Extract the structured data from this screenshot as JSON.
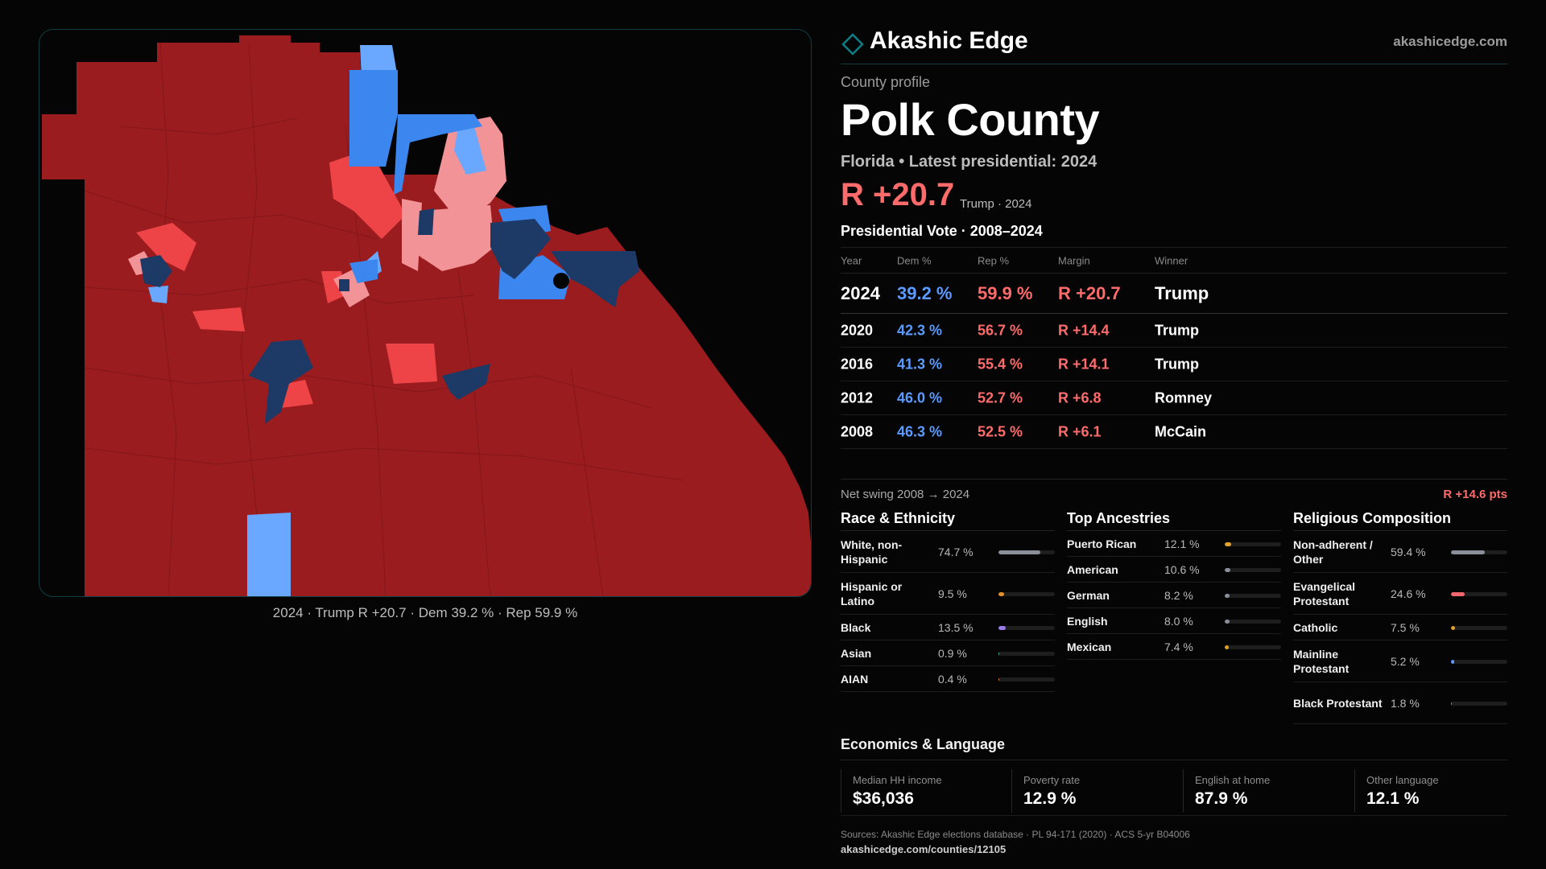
{
  "brand": {
    "name": "Akashic Edge",
    "url": "akashicedge.com",
    "accent": "#0d7d86"
  },
  "map": {
    "caption": "2024 · Trump R +20.7 · Dem 39.2 % · Rep 59.9 %",
    "colors": {
      "strong_rep": "#9b1c1f",
      "mid_rep": "#ef4447",
      "light_rep": "#f19397",
      "light_dem": "#6aa8ff",
      "mid_dem": "#3c87ef",
      "strong_dem": "#1d3a66"
    }
  },
  "profile": {
    "kicker": "County profile",
    "title": "Polk County",
    "subtitle": "Florida • Latest presidential: 2024",
    "headline_margin": "R +20.7",
    "headline_sub": "Trump · 2024"
  },
  "vote": {
    "title": "Presidential Vote · 2008–2024",
    "headers": {
      "year": "Year",
      "dem": "Dem %",
      "rep": "Rep %",
      "margin": "Margin",
      "winner": "Winner"
    },
    "rows": [
      {
        "year": "2024",
        "dem": "39.2 %",
        "rep": "59.9 %",
        "margin": "R +20.7",
        "winner": "Trump"
      },
      {
        "year": "2020",
        "dem": "42.3 %",
        "rep": "56.7 %",
        "margin": "R +14.4",
        "winner": "Trump"
      },
      {
        "year": "2016",
        "dem": "41.3 %",
        "rep": "55.4 %",
        "margin": "R +14.1",
        "winner": "Trump"
      },
      {
        "year": "2012",
        "dem": "46.0 %",
        "rep": "52.7 %",
        "margin": "R +6.8",
        "winner": "Romney"
      },
      {
        "year": "2008",
        "dem": "46.3 %",
        "rep": "52.5 %",
        "margin": "R +6.1",
        "winner": "McCain"
      }
    ],
    "swing_label": "Net swing 2008 → 2024",
    "swing_value": "R +14.6 pts"
  },
  "race": {
    "title": "Race & Ethnicity",
    "items": [
      {
        "label": "White, non-Hispanic",
        "value": "74.7 %",
        "pct": 74.7,
        "color": "#8a8f99"
      },
      {
        "label": "Hispanic or Latino",
        "value": "9.5 %",
        "pct": 9.5,
        "color": "#e0912a"
      },
      {
        "label": "Black",
        "value": "13.5 %",
        "pct": 13.5,
        "color": "#9a7be6"
      },
      {
        "label": "Asian",
        "value": "0.9 %",
        "pct": 0.9,
        "color": "#4fb3a0"
      },
      {
        "label": "AIAN",
        "value": "0.4 %",
        "pct": 0.4,
        "color": "#c27a3a"
      }
    ]
  },
  "ancestry": {
    "title": "Top Ancestries",
    "items": [
      {
        "label": "Puerto Rican",
        "value": "12.1 %",
        "pct": 12.1,
        "color": "#e0a22a"
      },
      {
        "label": "American",
        "value": "10.6 %",
        "pct": 10.6,
        "color": "#8a8f99"
      },
      {
        "label": "German",
        "value": "8.2 %",
        "pct": 8.2,
        "color": "#8a8f99"
      },
      {
        "label": "English",
        "value": "8.0 %",
        "pct": 8.0,
        "color": "#8a8f99"
      },
      {
        "label": "Mexican",
        "value": "7.4 %",
        "pct": 7.4,
        "color": "#e0a22a"
      }
    ]
  },
  "religion": {
    "title": "Religious Composition",
    "items": [
      {
        "label": "Non-adherent / Other",
        "value": "59.4 %",
        "pct": 59.4,
        "color": "#8a8f99"
      },
      {
        "label": "Evangelical Protestant",
        "value": "24.6 %",
        "pct": 24.6,
        "color": "#f0686d"
      },
      {
        "label": "Catholic",
        "value": "7.5 %",
        "pct": 7.5,
        "color": "#e0a22a"
      },
      {
        "label": "Mainline Protestant",
        "value": "5.2 %",
        "pct": 5.2,
        "color": "#5b9bff"
      },
      {
        "label": "Black Protestant",
        "value": "1.8 %",
        "pct": 1.8,
        "color": "#8a8f99"
      }
    ]
  },
  "economics": {
    "title": "Economics & Language",
    "cards": [
      {
        "label": "Median HH income",
        "value": "$36,036"
      },
      {
        "label": "Poverty rate",
        "value": "12.9 %"
      },
      {
        "label": "English at home",
        "value": "87.9 %"
      },
      {
        "label": "Other language",
        "value": "12.1 %"
      }
    ]
  },
  "footer": {
    "sources": "Sources: Akashic Edge elections database · PL 94-171 (2020) · ACS 5-yr B04006",
    "url": "akashicedge.com/counties/12105"
  }
}
